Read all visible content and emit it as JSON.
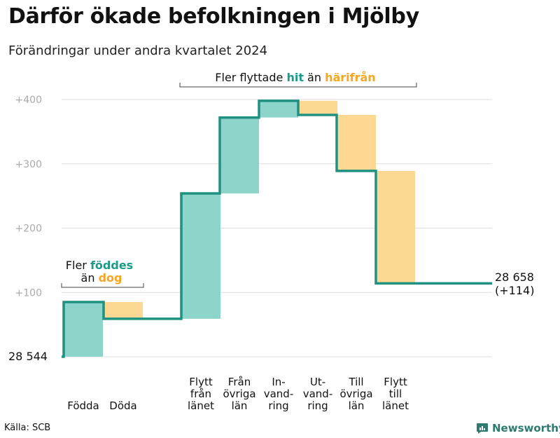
{
  "header": {
    "title": "Därför ökade befolkningen i Mjölby",
    "subtitle": "Förändringar under andra kvartalet 2024"
  },
  "footer": {
    "source": "Källa: SCB",
    "brand": "Newsworthy"
  },
  "colors": {
    "increase": "#8dd5cb",
    "decrease": "#fcd892",
    "line": "#1e9181",
    "accent_green": "#1b9c8a",
    "accent_orange": "#f5a623",
    "grid": "#dddddd",
    "tick": "#aaaaaa"
  },
  "annotations": {
    "left": {
      "line1": "Fler ",
      "line1_hl": "föddes",
      "line2": "än ",
      "line2_hl": "dog"
    },
    "top": {
      "pre": "Fler flyttade ",
      "hl1": "hit",
      "mid": " än ",
      "hl2": "härifrån"
    }
  },
  "chart_data": {
    "type": "waterfall",
    "base_value": "28  544",
    "base_change": 0,
    "end_value": "28 658",
    "end_change": "(+114)",
    "ylim": [
      0,
      400
    ],
    "yticks": [
      {
        "value": 100,
        "label": "+100"
      },
      {
        "value": 200,
        "label": "+200"
      },
      {
        "value": 300,
        "label": "+300"
      },
      {
        "value": 400,
        "label": "+400"
      }
    ],
    "steps": [
      {
        "label": [
          "Födda"
        ],
        "group": "natural",
        "change": 85
      },
      {
        "label": [
          "Döda"
        ],
        "group": "natural",
        "change": -26
      },
      {
        "label": [
          "Flytt",
          "från",
          "länet"
        ],
        "group": "migration",
        "change": 195
      },
      {
        "label": [
          "Från",
          "övriga",
          "län"
        ],
        "group": "migration",
        "change": 118
      },
      {
        "label": [
          "In-",
          "vand-",
          "ring"
        ],
        "group": "migration",
        "change": 26
      },
      {
        "label": [
          "Ut-",
          "vand-",
          "ring"
        ],
        "group": "migration",
        "change": -22
      },
      {
        "label": [
          "Till",
          "övriga",
          "län"
        ],
        "group": "migration",
        "change": -87
      },
      {
        "label": [
          "Flytt",
          "till",
          "länet"
        ],
        "group": "migration",
        "change": -175
      }
    ],
    "total_change": 114
  }
}
